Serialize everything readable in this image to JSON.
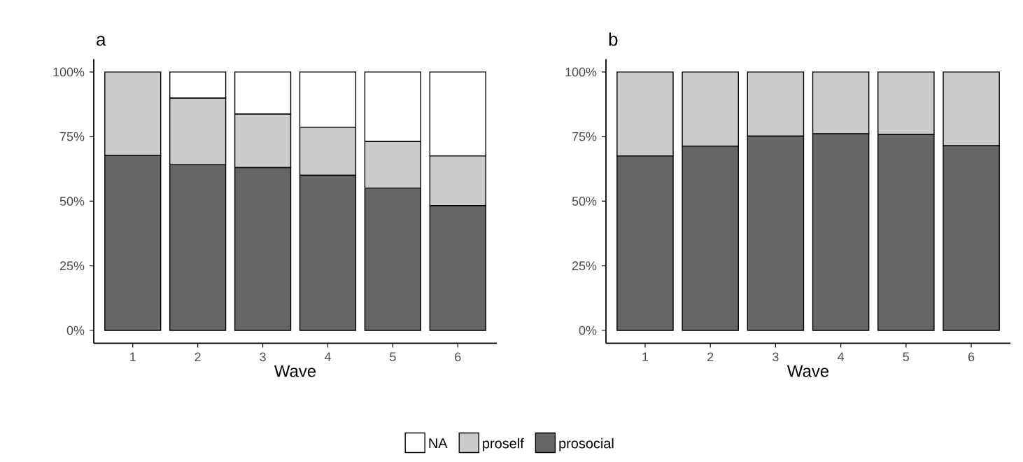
{
  "chart_data": [
    {
      "type": "bar",
      "title": "a",
      "xlabel": "Wave",
      "categories": [
        "1",
        "2",
        "3",
        "4",
        "5",
        "6"
      ],
      "stacked": true,
      "legend": "bottom",
      "ylim": [
        -5,
        105
      ],
      "yticks": [
        {
          "value": 0,
          "label": "0%"
        },
        {
          "value": 25,
          "label": "25%"
        },
        {
          "value": 50,
          "label": "50%"
        },
        {
          "value": 75,
          "label": "75%"
        },
        {
          "value": 100,
          "label": "100%"
        }
      ],
      "series": [
        {
          "name": "prosocial",
          "color": "#666666",
          "values": [
            67.7,
            64.1,
            63.0,
            60.0,
            55.1,
            48.3
          ]
        },
        {
          "name": "proself",
          "color": "#cdcaca",
          "values": [
            32.3,
            25.8,
            20.7,
            18.6,
            18.0,
            19.2
          ]
        },
        {
          "name": "NA",
          "color": "#ffffff",
          "values": [
            0,
            10.1,
            16.3,
            21.4,
            26.9,
            32.5
          ]
        }
      ]
    },
    {
      "type": "bar",
      "title": "b",
      "xlabel": "Wave",
      "categories": [
        "1",
        "2",
        "3",
        "4",
        "5",
        "6"
      ],
      "stacked": true,
      "ylim": [
        -5,
        105
      ],
      "yticks": [
        {
          "value": 0,
          "label": "0%"
        },
        {
          "value": 25,
          "label": "25%"
        },
        {
          "value": 50,
          "label": "50%"
        },
        {
          "value": 75,
          "label": "75%"
        },
        {
          "value": 100,
          "label": "100%"
        }
      ],
      "series": [
        {
          "color": "#666666",
          "values": [
            67.5,
            71.3,
            75.2,
            76.1,
            75.8,
            71.5
          ]
        },
        {
          "color": "#cdcaca",
          "values": [
            32.5,
            28.7,
            24.8,
            23.9,
            24.2,
            28.5
          ]
        }
      ]
    }
  ]
}
